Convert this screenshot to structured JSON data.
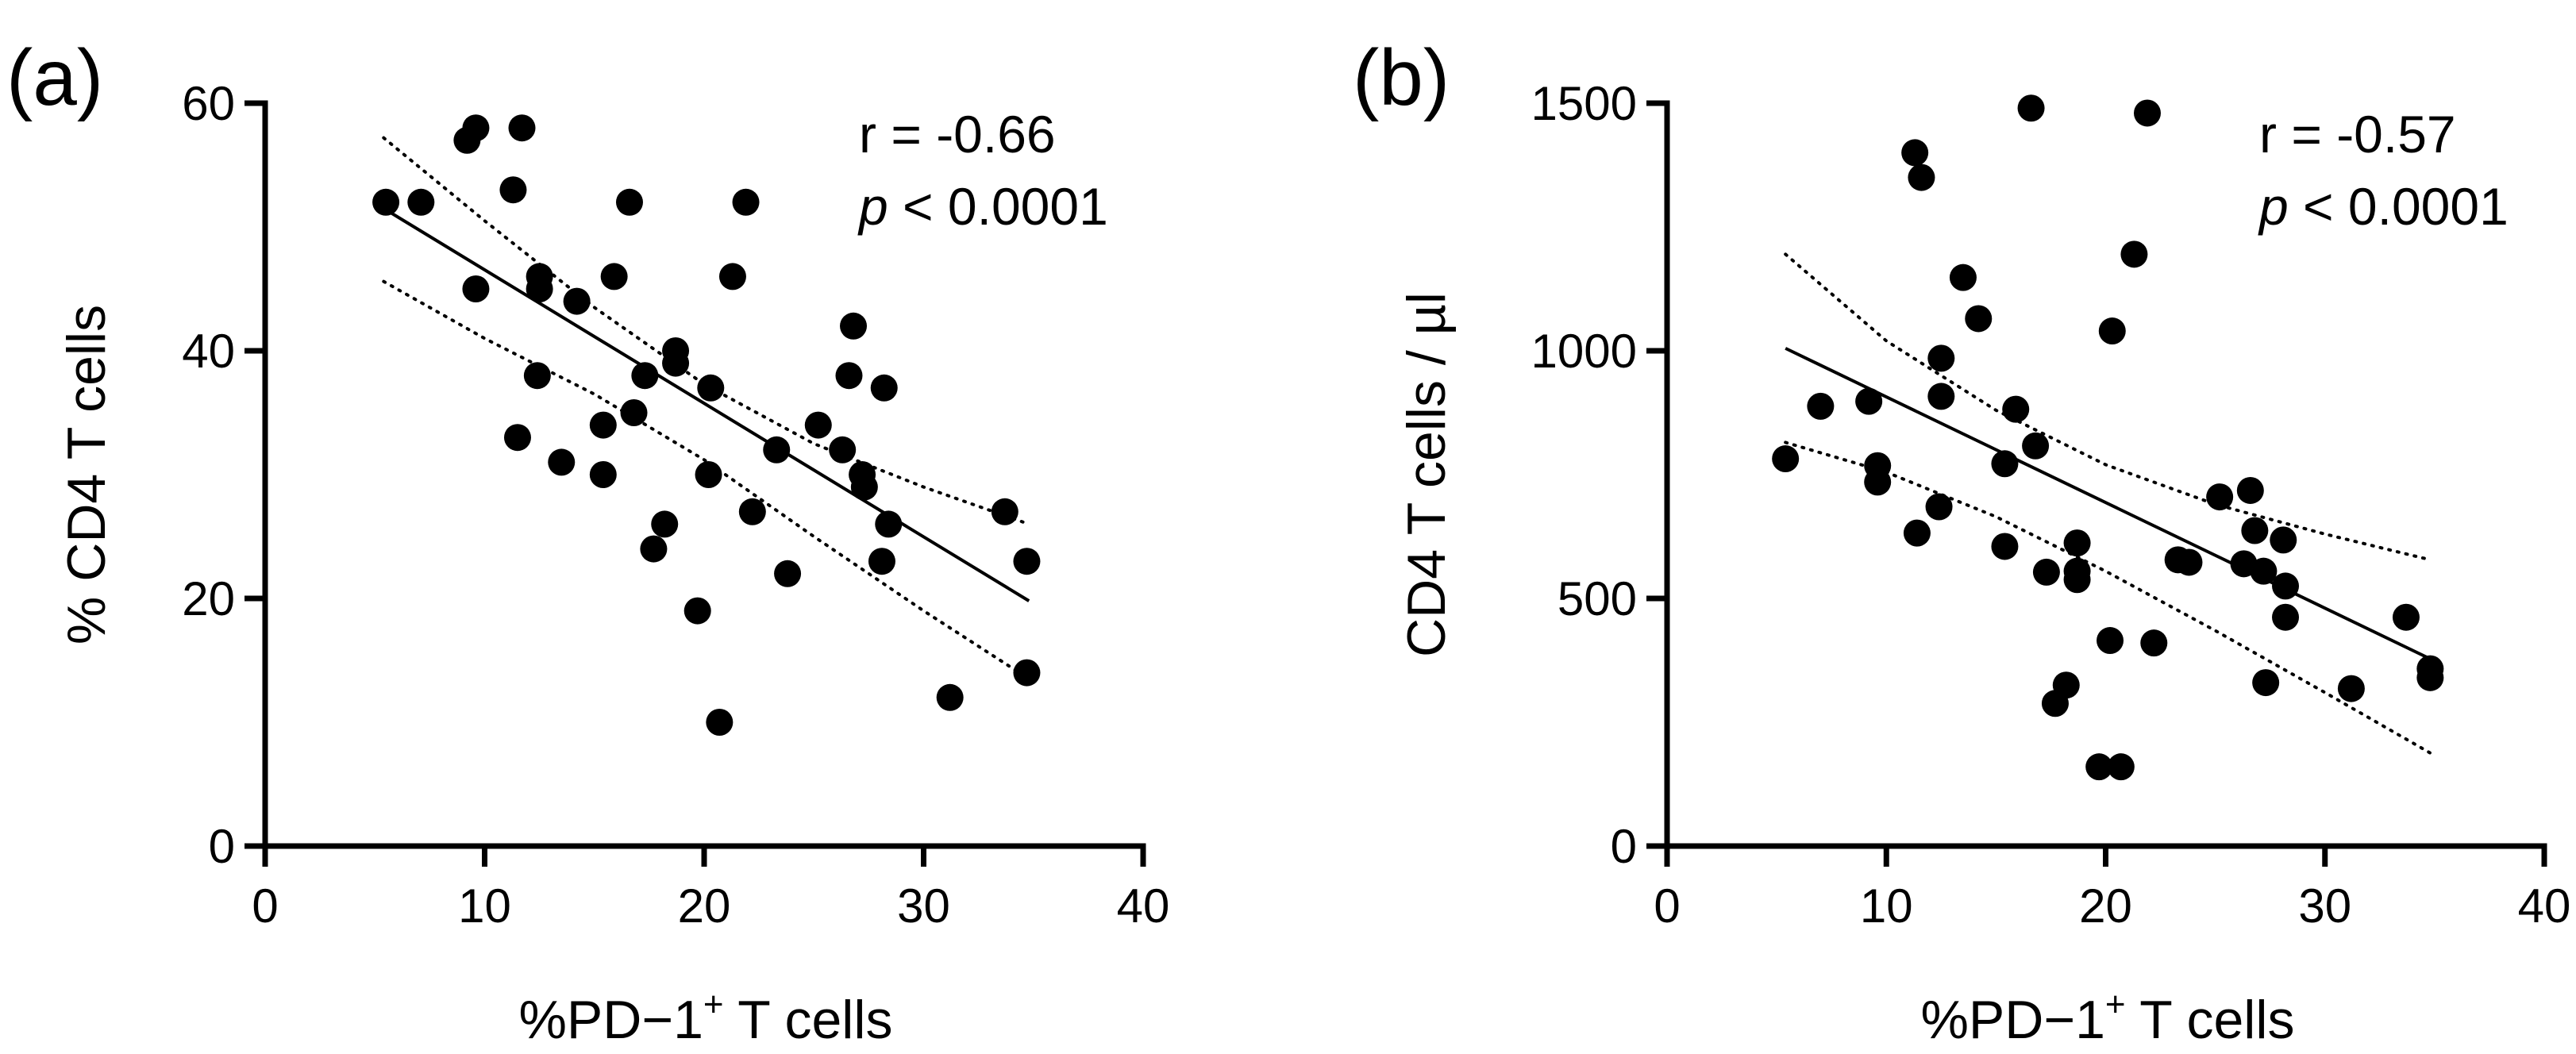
{
  "chart_data": [
    {
      "type": "scatter",
      "panel_label": "(a)",
      "xlabel_main": "%PD−1",
      "xlabel_sup": "+",
      "xlabel_tail": " T cells",
      "ylabel": "% CD4 T cells",
      "xlim": [
        0,
        40
      ],
      "ylim": [
        0,
        60
      ],
      "xticks": [
        0,
        10,
        20,
        30,
        40
      ],
      "yticks": [
        0,
        20,
        40,
        60
      ],
      "xtick_labels": [
        "0",
        "10",
        "20",
        "30",
        "40"
      ],
      "ytick_labels": [
        "0",
        "20",
        "40",
        "60"
      ],
      "stats": {
        "r_text": "r = -0.66",
        "p_symbol": "p",
        "p_rest": " < 0.0001"
      },
      "regression": {
        "x_start": 5.4,
        "x_end": 34.8,
        "y_start": 51.5,
        "y_end": 19.8
      },
      "confidence_band": {
        "upper": [
          [
            5.4,
            57.2
          ],
          [
            10,
            50.5
          ],
          [
            15,
            43.5
          ],
          [
            20,
            37.3
          ],
          [
            25,
            32.5
          ],
          [
            30,
            29.0
          ],
          [
            34.8,
            26.0
          ]
        ],
        "lower": [
          [
            5.4,
            45.6
          ],
          [
            10,
            41.0
          ],
          [
            15,
            36.5
          ],
          [
            20,
            31.2
          ],
          [
            25,
            25.0
          ],
          [
            30,
            19.0
          ],
          [
            34.8,
            13.5
          ]
        ]
      },
      "points": [
        [
          5.5,
          52
        ],
        [
          7.1,
          52
        ],
        [
          9.2,
          57
        ],
        [
          9.6,
          58
        ],
        [
          9.6,
          45
        ],
        [
          11.3,
          53
        ],
        [
          11.7,
          58
        ],
        [
          11.5,
          33
        ],
        [
          12.5,
          46
        ],
        [
          12.5,
          45
        ],
        [
          12.4,
          38
        ],
        [
          13.5,
          31
        ],
        [
          14.2,
          44
        ],
        [
          15.4,
          34
        ],
        [
          15.4,
          30
        ],
        [
          15.9,
          46
        ],
        [
          16.6,
          52
        ],
        [
          16.8,
          35
        ],
        [
          17.3,
          38
        ],
        [
          17.7,
          24
        ],
        [
          18.2,
          26
        ],
        [
          18.7,
          40
        ],
        [
          18.7,
          39
        ],
        [
          19.7,
          19
        ],
        [
          20.2,
          30
        ],
        [
          20.3,
          37
        ],
        [
          20.7,
          10
        ],
        [
          21.3,
          46
        ],
        [
          21.9,
          52
        ],
        [
          22.2,
          27
        ],
        [
          23.3,
          32
        ],
        [
          23.8,
          22
        ],
        [
          25.2,
          34
        ],
        [
          26.3,
          32
        ],
        [
          26.6,
          38
        ],
        [
          26.8,
          42
        ],
        [
          27.2,
          30
        ],
        [
          27.3,
          29
        ],
        [
          28.1,
          23
        ],
        [
          28.2,
          37
        ],
        [
          28.4,
          26
        ],
        [
          31.2,
          12
        ],
        [
          33.7,
          27
        ],
        [
          34.7,
          23
        ],
        [
          34.7,
          14
        ]
      ]
    },
    {
      "type": "scatter",
      "panel_label": "(b)",
      "xlabel_main": "%PD−1",
      "xlabel_sup": "+",
      "xlabel_tail": " T cells",
      "ylabel": "CD4 T cells / µl",
      "xlim": [
        0,
        40
      ],
      "ylim": [
        0,
        1500
      ],
      "xticks": [
        0,
        10,
        20,
        30,
        40
      ],
      "yticks": [
        0,
        500,
        1000,
        1500
      ],
      "xtick_labels": [
        "0",
        "10",
        "20",
        "30",
        "40"
      ],
      "ytick_labels": [
        "0",
        "500",
        "1000",
        "1500"
      ],
      "stats": {
        "r_text": "r = -0.57",
        "p_symbol": "p",
        "p_rest": " < 0.0001"
      },
      "regression": {
        "x_start": 5.4,
        "x_end": 34.8,
        "y_start": 1005,
        "y_end": 378
      },
      "confidence_band": {
        "upper": [
          [
            5.4,
            1195
          ],
          [
            10,
            1020
          ],
          [
            15,
            880
          ],
          [
            20,
            770
          ],
          [
            25,
            690
          ],
          [
            30,
            630
          ],
          [
            34.8,
            578
          ]
        ],
        "lower": [
          [
            5.4,
            815
          ],
          [
            10,
            755
          ],
          [
            15,
            665
          ],
          [
            20,
            555
          ],
          [
            25,
            435
          ],
          [
            30,
            310
          ],
          [
            34.8,
            188
          ]
        ]
      },
      "points": [
        [
          5.4,
          782
        ],
        [
          7.0,
          888
        ],
        [
          9.2,
          898
        ],
        [
          9.6,
          768
        ],
        [
          9.6,
          735
        ],
        [
          11.3,
          1400
        ],
        [
          11.6,
          1350
        ],
        [
          11.4,
          632
        ],
        [
          12.5,
          985
        ],
        [
          12.5,
          908
        ],
        [
          12.4,
          685
        ],
        [
          13.5,
          1148
        ],
        [
          14.2,
          1065
        ],
        [
          15.4,
          772
        ],
        [
          15.4,
          605
        ],
        [
          15.9,
          882
        ],
        [
          16.6,
          1490
        ],
        [
          16.8,
          808
        ],
        [
          17.3,
          553
        ],
        [
          17.7,
          288
        ],
        [
          18.2,
          325
        ],
        [
          18.7,
          612
        ],
        [
          18.7,
          555
        ],
        [
          18.7,
          538
        ],
        [
          19.7,
          160
        ],
        [
          20.3,
          1040
        ],
        [
          20.2,
          415
        ],
        [
          20.7,
          160
        ],
        [
          21.3,
          1195
        ],
        [
          21.9,
          1480
        ],
        [
          22.2,
          410
        ],
        [
          23.3,
          578
        ],
        [
          23.8,
          573
        ],
        [
          25.2,
          705
        ],
        [
          26.3,
          570
        ],
        [
          26.6,
          718
        ],
        [
          26.8,
          637
        ],
        [
          27.2,
          555
        ],
        [
          27.3,
          330
        ],
        [
          28.1,
          618
        ],
        [
          28.2,
          525
        ],
        [
          28.2,
          462
        ],
        [
          31.2,
          318
        ],
        [
          33.7,
          462
        ],
        [
          34.8,
          358
        ],
        [
          34.8,
          340
        ]
      ]
    }
  ]
}
